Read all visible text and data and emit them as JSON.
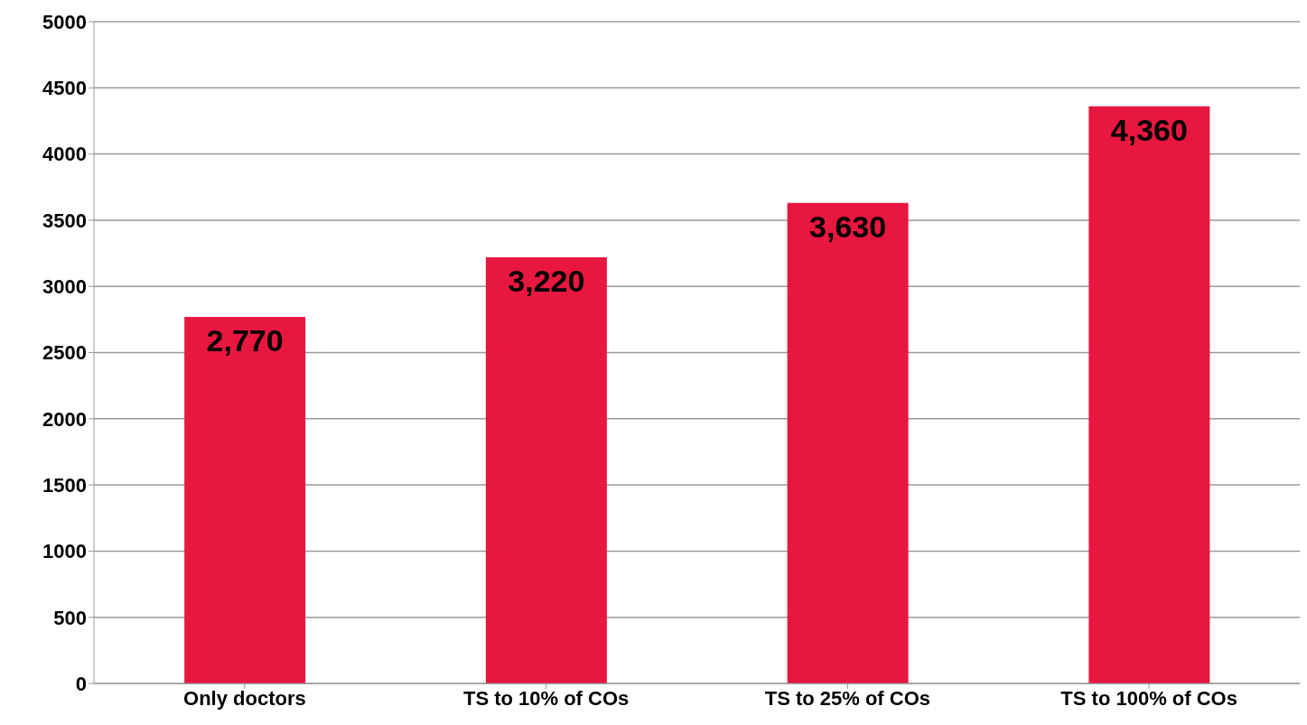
{
  "chart_data": {
    "type": "bar",
    "categories": [
      "Only doctors",
      "TS to 10% of COs",
      "TS to 25% of COs",
      "TS to 100% of COs"
    ],
    "values": [
      2770,
      3220,
      3630,
      4360
    ],
    "value_labels": [
      "2,770",
      "3,220",
      "3,630",
      "4,360"
    ],
    "color": "#e8173f",
    "ylim": [
      0,
      5000
    ],
    "yticks": [
      0,
      500,
      1000,
      1500,
      2000,
      2500,
      3000,
      3500,
      4000,
      4500,
      5000
    ],
    "grid": "y"
  }
}
